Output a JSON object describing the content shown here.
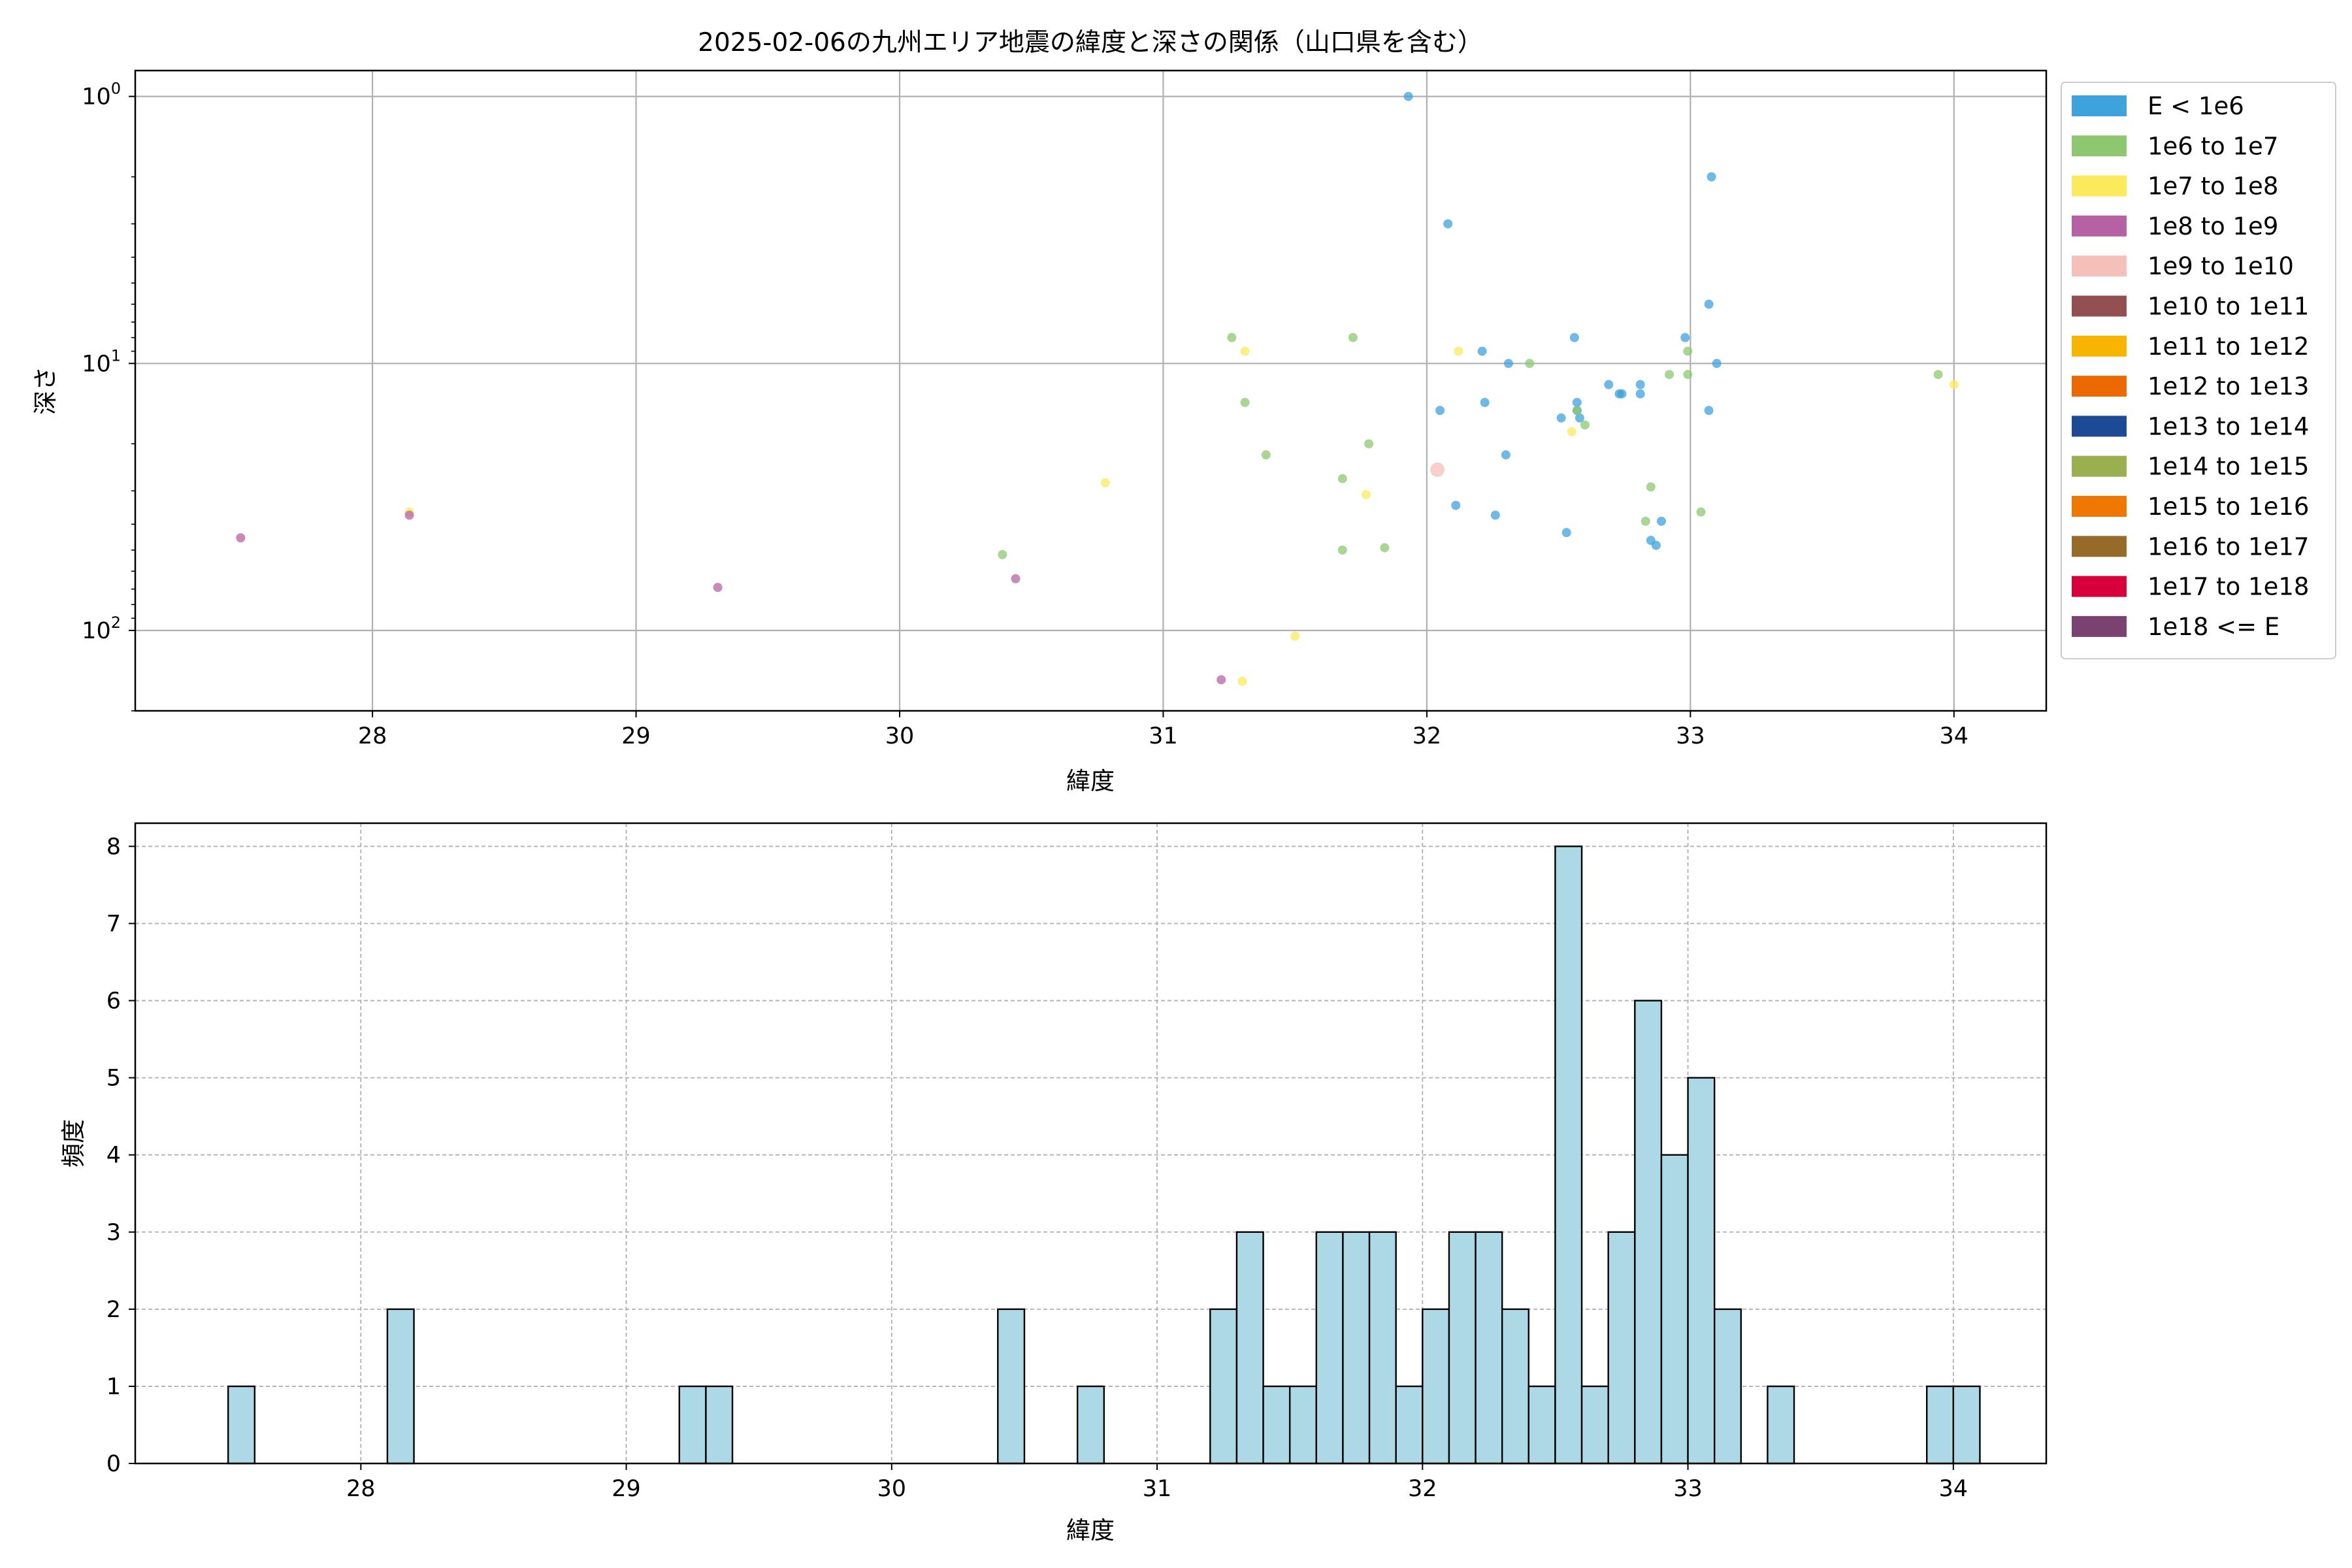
{
  "chart_data": [
    {
      "type": "scatter",
      "title": "2025-02-06の九州エリア地震の緯度と深さの関係（山口県を含む）",
      "xlabel": "緯度",
      "ylabel": "深さ",
      "xlim": [
        27.1,
        34.35
      ],
      "ylim": [
        200,
        0.8
      ],
      "yscale": "log",
      "y_inverted": true,
      "grid": true,
      "legend_position": "outside-right",
      "x_ticks": [
        28,
        29,
        30,
        31,
        32,
        33,
        34
      ],
      "y_ticks": [
        {
          "value": 1,
          "base": "10",
          "exp": "0"
        },
        {
          "value": 10,
          "base": "10",
          "exp": "1"
        },
        {
          "value": 100,
          "base": "10",
          "exp": "2"
        }
      ],
      "legend": [
        {
          "label": "E < 1e6",
          "color": "#3ea2dc"
        },
        {
          "label": "1e6 to 1e7",
          "color": "#8dc870"
        },
        {
          "label": "1e7 to 1e8",
          "color": "#fbea5c"
        },
        {
          "label": "1e8 to 1e9",
          "color": "#b561a4"
        },
        {
          "label": "1e9 to 1e10",
          "color": "#f6c0ba"
        },
        {
          "label": "1e10 to 1e11",
          "color": "#945050"
        },
        {
          "label": "1e11 to 1e12",
          "color": "#f8b500"
        },
        {
          "label": "1e12 to 1e13",
          "color": "#ec6800"
        },
        {
          "label": "1e13 to 1e14",
          "color": "#1c4a95"
        },
        {
          "label": "1e14 to 1e15",
          "color": "#9aaf4f"
        },
        {
          "label": "1e15 to 1e16",
          "color": "#ee7800"
        },
        {
          "label": "1e16 to 1e17",
          "color": "#966b2a"
        },
        {
          "label": "1e17 to 1e18",
          "color": "#d7003a"
        },
        {
          "label": "1e18 <= E",
          "color": "#7a4171"
        }
      ],
      "series": [
        {
          "name": "E < 1e6",
          "color": "#3ea2dc",
          "points": [
            [
              31.93,
              1.0
            ],
            [
              32.08,
              3.0
            ],
            [
              33.08,
              2.0
            ],
            [
              33.07,
              6.0
            ],
            [
              32.98,
              8.0
            ],
            [
              32.21,
              9.0
            ],
            [
              33.1,
              10.0
            ],
            [
              32.31,
              10.0
            ],
            [
              32.56,
              8.0
            ],
            [
              32.69,
              12.0
            ],
            [
              32.74,
              13.0
            ],
            [
              32.81,
              12.0
            ],
            [
              32.81,
              13.0
            ],
            [
              32.57,
              14.0
            ],
            [
              33.07,
              15.0
            ],
            [
              32.22,
              14.0
            ],
            [
              32.05,
              15.0
            ],
            [
              32.51,
              16.0
            ],
            [
              32.58,
              16.0
            ],
            [
              32.3,
              22.0
            ],
            [
              32.11,
              34.0
            ],
            [
              32.26,
              37.0
            ],
            [
              32.53,
              43.0
            ],
            [
              32.89,
              39.0
            ],
            [
              32.85,
              46.0
            ],
            [
              32.87,
              48.0
            ],
            [
              32.73,
              13.0
            ],
            [
              32.57,
              15.0
            ]
          ]
        },
        {
          "name": "1e6 to 1e7",
          "color": "#8dc870",
          "points": [
            [
              31.26,
              8.0
            ],
            [
              31.72,
              8.0
            ],
            [
              32.99,
              9.0
            ],
            [
              32.39,
              10.0
            ],
            [
              32.92,
              11.0
            ],
            [
              32.99,
              11.0
            ],
            [
              31.31,
              14.0
            ],
            [
              33.94,
              11.0
            ],
            [
              31.39,
              22.0
            ],
            [
              31.78,
              20.0
            ],
            [
              31.68,
              27.0
            ],
            [
              32.6,
              17.0
            ],
            [
              32.57,
              15.0
            ],
            [
              32.85,
              29.0
            ],
            [
              33.04,
              36.0
            ],
            [
              32.83,
              39.0
            ],
            [
              31.84,
              49.0
            ],
            [
              31.68,
              50.0
            ],
            [
              30.39,
              52.0
            ]
          ]
        },
        {
          "name": "1e7 to 1e8",
          "color": "#fbea5c",
          "points": [
            [
              31.31,
              9.0
            ],
            [
              32.12,
              9.0
            ],
            [
              34.0,
              12.0
            ],
            [
              32.55,
              18.0
            ],
            [
              30.78,
              28.0
            ],
            [
              31.77,
              31.0
            ],
            [
              28.14,
              36.0
            ],
            [
              31.5,
              105.0
            ],
            [
              31.3,
              155.0
            ]
          ]
        },
        {
          "name": "1e8 to 1e9",
          "color": "#b561a4",
          "points": [
            [
              27.5,
              45.0
            ],
            [
              28.14,
              37.0
            ],
            [
              29.31,
              69.0
            ],
            [
              30.44,
              64.0
            ],
            [
              31.22,
              153.0
            ]
          ]
        },
        {
          "name": "1e9 to 1e10",
          "color": "#f6c0ba",
          "points": [
            [
              32.04,
              25.0
            ]
          ]
        }
      ]
    },
    {
      "type": "bar",
      "xlabel": "緯度",
      "ylabel": "頻度",
      "xlim": [
        27.15,
        34.35
      ],
      "ylim": [
        0,
        8.3
      ],
      "grid": true,
      "x_ticks": [
        28,
        29,
        30,
        31,
        32,
        33,
        34
      ],
      "y_ticks": [
        0,
        1,
        2,
        3,
        4,
        5,
        6,
        7,
        8
      ],
      "bar_color": "#add8e6",
      "bin_width": 0.1,
      "bins": [
        {
          "x": 27.55,
          "count": 1
        },
        {
          "x": 28.15,
          "count": 2
        },
        {
          "x": 29.25,
          "count": 1
        },
        {
          "x": 29.35,
          "count": 1
        },
        {
          "x": 30.45,
          "count": 2
        },
        {
          "x": 30.75,
          "count": 1
        },
        {
          "x": 31.25,
          "count": 2
        },
        {
          "x": 31.35,
          "count": 3
        },
        {
          "x": 31.45,
          "count": 1
        },
        {
          "x": 31.55,
          "count": 1
        },
        {
          "x": 31.65,
          "count": 3
        },
        {
          "x": 31.75,
          "count": 3
        },
        {
          "x": 31.85,
          "count": 3
        },
        {
          "x": 31.95,
          "count": 1
        },
        {
          "x": 32.05,
          "count": 2
        },
        {
          "x": 32.15,
          "count": 3
        },
        {
          "x": 32.25,
          "count": 3
        },
        {
          "x": 32.35,
          "count": 2
        },
        {
          "x": 32.45,
          "count": 1
        },
        {
          "x": 32.55,
          "count": 8
        },
        {
          "x": 32.65,
          "count": 1
        },
        {
          "x": 32.75,
          "count": 3
        },
        {
          "x": 32.85,
          "count": 6
        },
        {
          "x": 32.95,
          "count": 4
        },
        {
          "x": 33.05,
          "count": 5
        },
        {
          "x": 33.15,
          "count": 2
        },
        {
          "x": 33.35,
          "count": 1
        },
        {
          "x": 33.95,
          "count": 1
        },
        {
          "x": 34.05,
          "count": 1
        }
      ]
    }
  ]
}
